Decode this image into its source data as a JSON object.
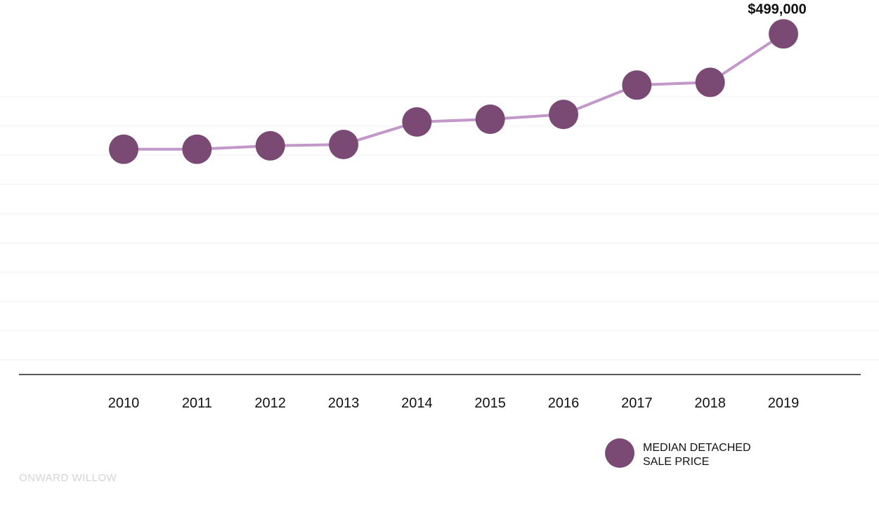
{
  "chart_data": {
    "type": "line",
    "categories": [
      "2010",
      "2011",
      "2012",
      "2013",
      "2014",
      "2015",
      "2016",
      "2017",
      "2018",
      "2019"
    ],
    "series": [
      {
        "name": "MEDIAN DETACHED SALE PRICE",
        "values": [
          330000,
          330000,
          335000,
          337000,
          370000,
          374000,
          381000,
          424000,
          428000,
          499000
        ]
      }
    ],
    "data_labels": [
      {
        "category": "2019",
        "text": "$499,000"
      }
    ],
    "legend": {
      "position": "bottom-right",
      "lines": [
        "MEDIAN DETACHED",
        "SALE PRICE"
      ]
    },
    "title": "",
    "xlabel": "",
    "ylabel": "",
    "ylim": [
      0,
      450000
    ],
    "grid": true,
    "colors": {
      "line": "#c297c9",
      "marker": "#7a4a74",
      "gridline": "#f2f2f2",
      "axis": "#222222"
    }
  },
  "watermark": "ONWARD WILLOW"
}
